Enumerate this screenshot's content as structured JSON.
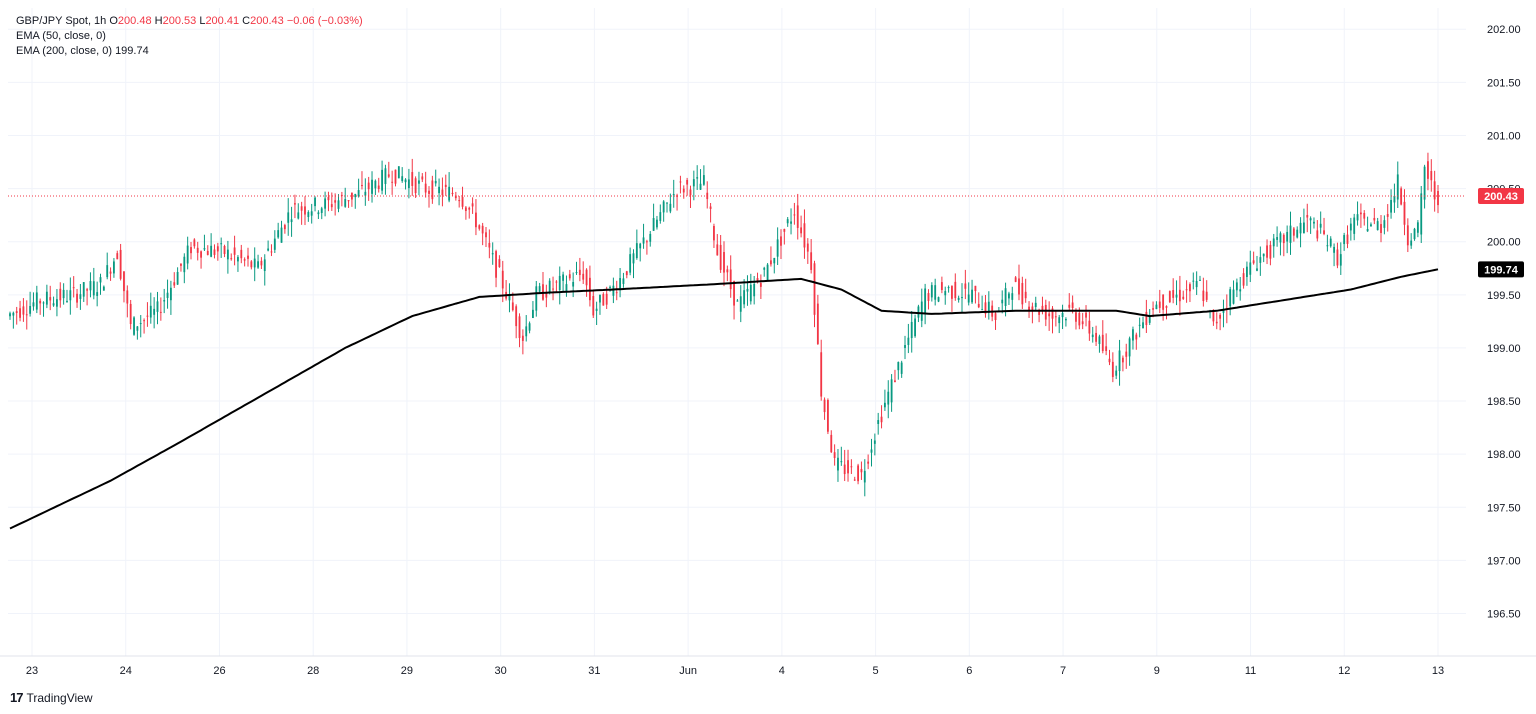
{
  "legend": {
    "symbol": "GBP/JPY Spot, 1h",
    "o_label": "O",
    "o_val": "200.48",
    "h_label": "H",
    "h_val": "200.53",
    "l_label": "L",
    "l_val": "200.41",
    "c_label": "C",
    "c_val": "200.43",
    "change": "−0.06 (−0.03%)",
    "ema50": "EMA (50, close, 0)",
    "ema200": "EMA (200, close, 0)",
    "ema200_val": "199.74"
  },
  "brand": {
    "logo": "17",
    "name": "TradingView"
  },
  "colors": {
    "up": "#089981",
    "down": "#f23645",
    "ema200": "#000000",
    "grid": "#f0f3fa",
    "price_line": "#f23645"
  },
  "chart_data": {
    "type": "candlestick",
    "title": "GBP/JPY Spot, 1h",
    "y_ticks": [
      "196.50",
      "197.00",
      "197.50",
      "198.00",
      "198.50",
      "199.00",
      "199.50",
      "200.00",
      "200.50",
      "201.00",
      "201.50",
      "202.00"
    ],
    "ylim": [
      196.1,
      202.2
    ],
    "x_ticks": [
      "23",
      "24",
      "26",
      "28",
      "29",
      "30",
      "31",
      "Jun",
      "4",
      "5",
      "6",
      "7",
      "9",
      "11",
      "12",
      "13"
    ],
    "last_price": "200.43",
    "ema200_last": "199.74",
    "grid": true,
    "anchors": [
      [
        0,
        199.3
      ],
      [
        10,
        199.45
      ],
      [
        20,
        199.5
      ],
      [
        28,
        199.6
      ],
      [
        33,
        199.9
      ],
      [
        37,
        199.2
      ],
      [
        45,
        199.35
      ],
      [
        55,
        199.95
      ],
      [
        65,
        199.9
      ],
      [
        75,
        199.75
      ],
      [
        85,
        200.3
      ],
      [
        95,
        200.35
      ],
      [
        105,
        200.45
      ],
      [
        115,
        200.65
      ],
      [
        125,
        200.5
      ],
      [
        135,
        200.45
      ],
      [
        140,
        200.2
      ],
      [
        148,
        199.6
      ],
      [
        154,
        199.1
      ],
      [
        158,
        199.5
      ],
      [
        165,
        199.6
      ],
      [
        172,
        199.7
      ],
      [
        175,
        199.35
      ],
      [
        182,
        199.6
      ],
      [
        190,
        200.0
      ],
      [
        200,
        200.5
      ],
      [
        208,
        200.55
      ],
      [
        212,
        199.9
      ],
      [
        218,
        199.4
      ],
      [
        226,
        199.7
      ],
      [
        235,
        200.3
      ],
      [
        240,
        199.8
      ],
      [
        243,
        198.6
      ],
      [
        247,
        197.9
      ],
      [
        255,
        197.8
      ],
      [
        260,
        198.3
      ],
      [
        268,
        199.0
      ],
      [
        274,
        199.5
      ],
      [
        280,
        199.55
      ],
      [
        288,
        199.5
      ],
      [
        295,
        199.3
      ],
      [
        300,
        199.6
      ],
      [
        306,
        199.4
      ],
      [
        312,
        199.3
      ],
      [
        318,
        199.35
      ],
      [
        325,
        199.1
      ],
      [
        330,
        198.8
      ],
      [
        336,
        199.1
      ],
      [
        342,
        199.4
      ],
      [
        350,
        199.5
      ],
      [
        356,
        199.6
      ],
      [
        360,
        199.2
      ],
      [
        365,
        199.5
      ],
      [
        372,
        199.8
      ],
      [
        380,
        200.0
      ],
      [
        388,
        200.2
      ],
      [
        393,
        200.05
      ],
      [
        397,
        199.85
      ],
      [
        402,
        200.2
      ],
      [
        410,
        200.15
      ],
      [
        415,
        200.55
      ],
      [
        418,
        200.05
      ],
      [
        421,
        200.1
      ],
      [
        423,
        200.7
      ],
      [
        426,
        200.43
      ]
    ],
    "ema200_curve": [
      [
        0,
        197.3
      ],
      [
        30,
        197.75
      ],
      [
        50,
        198.1
      ],
      [
        75,
        198.55
      ],
      [
        100,
        199.0
      ],
      [
        120,
        199.3
      ],
      [
        140,
        199.48
      ],
      [
        160,
        199.52
      ],
      [
        180,
        199.55
      ],
      [
        210,
        199.6
      ],
      [
        236,
        199.65
      ],
      [
        248,
        199.55
      ],
      [
        260,
        199.35
      ],
      [
        275,
        199.32
      ],
      [
        300,
        199.35
      ],
      [
        330,
        199.35
      ],
      [
        340,
        199.3
      ],
      [
        360,
        199.35
      ],
      [
        380,
        199.45
      ],
      [
        400,
        199.55
      ],
      [
        415,
        199.67
      ],
      [
        426,
        199.74
      ]
    ]
  }
}
